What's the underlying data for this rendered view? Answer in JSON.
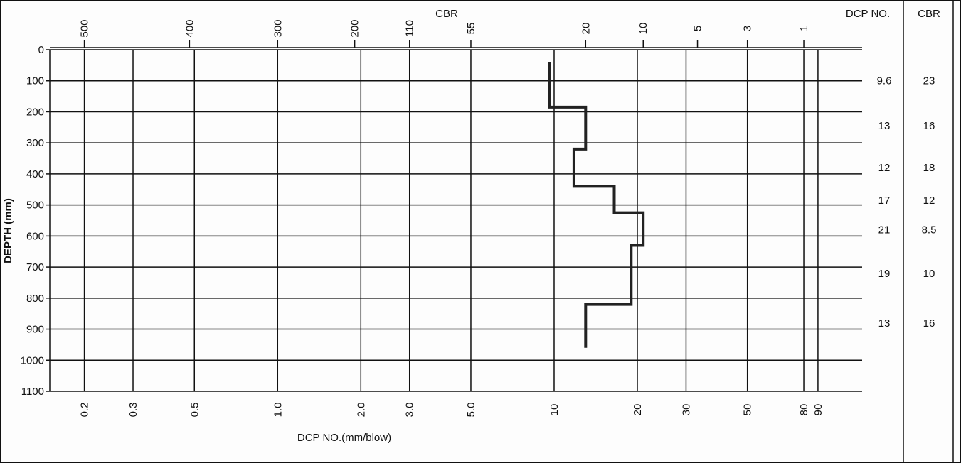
{
  "chart_data": {
    "type": "line",
    "title": "",
    "xlabel": "DCP NO.(mm/blow)",
    "ylabel": "DEPTH (mm)",
    "top_axis_label": "CBR",
    "x_scale": "log",
    "xlim": [
      0.15,
      130
    ],
    "ylim": [
      0,
      1100
    ],
    "y_ticks": [
      0,
      100,
      200,
      300,
      400,
      500,
      600,
      700,
      800,
      900,
      1000,
      1100
    ],
    "x_ticks": [
      {
        "v": 0.2,
        "label": "0.2"
      },
      {
        "v": 0.3,
        "label": "0.3"
      },
      {
        "v": 0.5,
        "label": "0.5"
      },
      {
        "v": 1.0,
        "label": "1.0"
      },
      {
        "v": 2.0,
        "label": "2.0"
      },
      {
        "v": 3.0,
        "label": "3.0"
      },
      {
        "v": 5.0,
        "label": "5.0"
      },
      {
        "v": 10,
        "label": "10"
      },
      {
        "v": 20,
        "label": "20"
      },
      {
        "v": 30,
        "label": "30"
      },
      {
        "v": 50,
        "label": "50"
      },
      {
        "v": 80,
        "label": "80"
      },
      {
        "v": 90,
        "label": "90"
      }
    ],
    "cbr_ticks": [
      {
        "v": 0.2,
        "label": "500"
      },
      {
        "v": 0.48,
        "label": "400"
      },
      {
        "v": 1.0,
        "label": "300"
      },
      {
        "v": 1.9,
        "label": "200"
      },
      {
        "v": 3.0,
        "label": "110"
      },
      {
        "v": 5.0,
        "label": "55"
      },
      {
        "v": 13,
        "label": "20"
      },
      {
        "v": 21,
        "label": "10"
      },
      {
        "v": 33,
        "label": "5"
      },
      {
        "v": 50,
        "label": "3"
      },
      {
        "v": 80,
        "label": "1"
      }
    ],
    "series": [
      {
        "points": [
          {
            "x": 9.6,
            "y": 40
          },
          {
            "x": 9.6,
            "y": 185
          },
          {
            "x": 13,
            "y": 185
          },
          {
            "x": 13,
            "y": 320
          },
          {
            "x": 11.8,
            "y": 320
          },
          {
            "x": 11.8,
            "y": 440
          },
          {
            "x": 16.5,
            "y": 440
          },
          {
            "x": 16.5,
            "y": 525
          },
          {
            "x": 21,
            "y": 525
          },
          {
            "x": 21,
            "y": 630
          },
          {
            "x": 19,
            "y": 630
          },
          {
            "x": 19,
            "y": 820
          },
          {
            "x": 13,
            "y": 820
          },
          {
            "x": 13,
            "y": 960
          }
        ]
      }
    ]
  },
  "table": {
    "dcp_header": "DCP NO.",
    "cbr_header": "CBR",
    "rows": [
      {
        "depth": 100,
        "dcp": "9.6",
        "cbr": "23"
      },
      {
        "depth": 245,
        "dcp": "13",
        "cbr": "16"
      },
      {
        "depth": 380,
        "dcp": "12",
        "cbr": "18"
      },
      {
        "depth": 485,
        "dcp": "17",
        "cbr": "12"
      },
      {
        "depth": 580,
        "dcp": "21",
        "cbr": "8.5"
      },
      {
        "depth": 720,
        "dcp": "19",
        "cbr": "10"
      },
      {
        "depth": 880,
        "dcp": "13",
        "cbr": "16"
      }
    ]
  },
  "colors": {
    "line": "#222222",
    "grid": "#111111",
    "background": "#fdfdfd"
  }
}
